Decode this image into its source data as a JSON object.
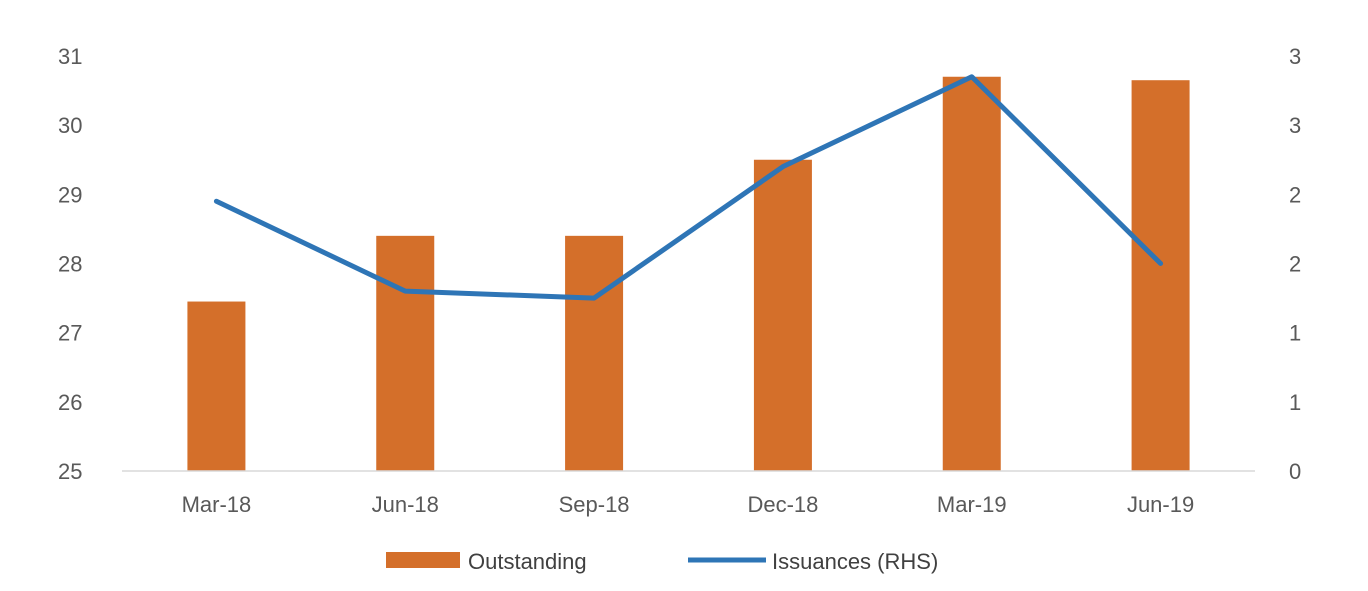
{
  "chart_data": {
    "type": "bar",
    "categories": [
      "Mar-18",
      "Jun-18",
      "Sep-18",
      "Dec-18",
      "Mar-19",
      "Jun-19"
    ],
    "series": [
      {
        "name": "Outstanding",
        "type": "bar",
        "axis": "left",
        "color": "#D46F2A",
        "values": [
          27.45,
          28.4,
          28.4,
          29.5,
          30.7,
          30.65
        ]
      },
      {
        "name": "Issuances (RHS)",
        "type": "line",
        "axis": "right",
        "color": "#2E75B6",
        "values": [
          1.95,
          1.3,
          1.25,
          2.2,
          2.85,
          1.5
        ]
      }
    ],
    "y_left": {
      "min": 25,
      "max": 31,
      "ticks": [
        25,
        26,
        27,
        28,
        29,
        30,
        31
      ],
      "tick_labels": [
        "25",
        "26",
        "27",
        "28",
        "29",
        "30",
        "31"
      ]
    },
    "y_right": {
      "min": 0,
      "max": 3,
      "ticks": [
        0,
        0.5,
        1,
        1.5,
        2,
        2.5,
        3
      ],
      "tick_labels": [
        "0",
        "1",
        "1",
        "2",
        "2",
        "3",
        "3"
      ]
    },
    "grid": false,
    "legend_position": "bottom"
  }
}
